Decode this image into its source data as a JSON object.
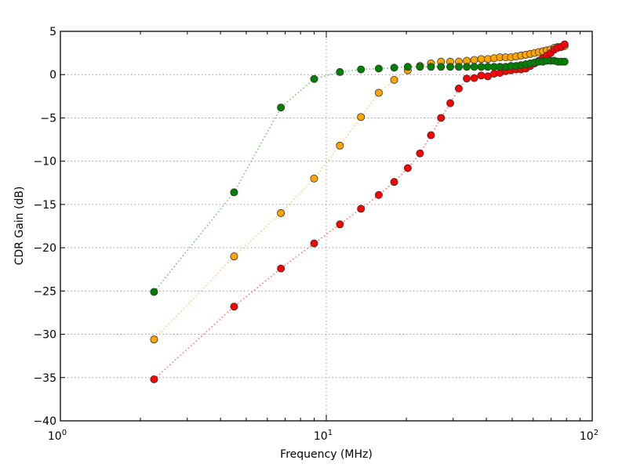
{
  "chart_data": {
    "type": "scatter",
    "title": "",
    "xlabel": "Frequency (MHz)",
    "ylabel": "CDR Gain (dB)",
    "xscale": "log",
    "xlim": [
      1,
      100
    ],
    "ylim": [
      -40,
      5
    ],
    "xticks": [
      {
        "base": "10",
        "exp": "0",
        "value": 1
      },
      {
        "base": "10",
        "exp": "1",
        "value": 10
      },
      {
        "base": "10",
        "exp": "2",
        "value": 100
      }
    ],
    "yticks": [
      5,
      0,
      -5,
      -10,
      -15,
      -20,
      -25,
      -30,
      -35,
      -40
    ],
    "ytick_labels": [
      "5",
      "0",
      "−5",
      "−10",
      "−15",
      "−20",
      "−25",
      "−30",
      "−35",
      "−40"
    ],
    "grid": true,
    "legend": "none",
    "x": [
      2.25,
      4.5,
      6.75,
      9,
      11.25,
      13.5,
      15.75,
      18,
      20.25,
      22.5,
      24.75,
      27,
      29.25,
      31.5,
      33.75,
      36,
      38.25,
      40.5,
      42.75,
      45,
      47.25,
      49.5,
      51.75,
      54,
      56.25,
      58.5,
      60.75,
      63,
      65.25,
      67.5,
      69.75,
      72,
      74.25,
      76.5,
      78.75
    ],
    "series": [
      {
        "color": "#ffa500",
        "line_color": "#ffc870",
        "values": [
          -30.6,
          -21.0,
          -16.0,
          -12.0,
          -8.2,
          -4.9,
          -2.1,
          -0.6,
          0.5,
          1.0,
          1.3,
          1.5,
          1.5,
          1.5,
          1.6,
          1.7,
          1.8,
          1.8,
          1.9,
          2.0,
          2.0,
          2.0,
          2.1,
          2.2,
          2.3,
          2.4,
          2.5,
          2.6,
          2.7,
          2.8,
          2.9,
          3.1,
          3.2,
          3.2,
          3.3
        ]
      },
      {
        "color": "#ff0000",
        "line_color": "#ff7070",
        "values": [
          -35.2,
          -26.8,
          -22.4,
          -19.5,
          -17.3,
          -15.5,
          -13.9,
          -12.4,
          -10.8,
          -9.1,
          -7.0,
          -5.0,
          -3.3,
          -1.6,
          -0.45,
          -0.4,
          -0.1,
          -0.2,
          0.1,
          0.2,
          0.4,
          0.5,
          0.6,
          0.6,
          0.7,
          1.0,
          1.3,
          1.6,
          1.9,
          2.2,
          2.5,
          2.9,
          3.1,
          3.2,
          3.5
        ]
      },
      {
        "color": "#008000",
        "line_color": "#70c070",
        "values": [
          -25.1,
          -13.6,
          -3.8,
          -0.5,
          0.3,
          0.6,
          0.7,
          0.8,
          0.9,
          0.9,
          0.9,
          0.9,
          0.9,
          0.9,
          0.9,
          0.9,
          0.9,
          0.9,
          0.9,
          0.9,
          0.9,
          1.0,
          1.0,
          1.1,
          1.2,
          1.3,
          1.4,
          1.5,
          1.5,
          1.6,
          1.6,
          1.6,
          1.5,
          1.5,
          1.5
        ]
      }
    ]
  }
}
